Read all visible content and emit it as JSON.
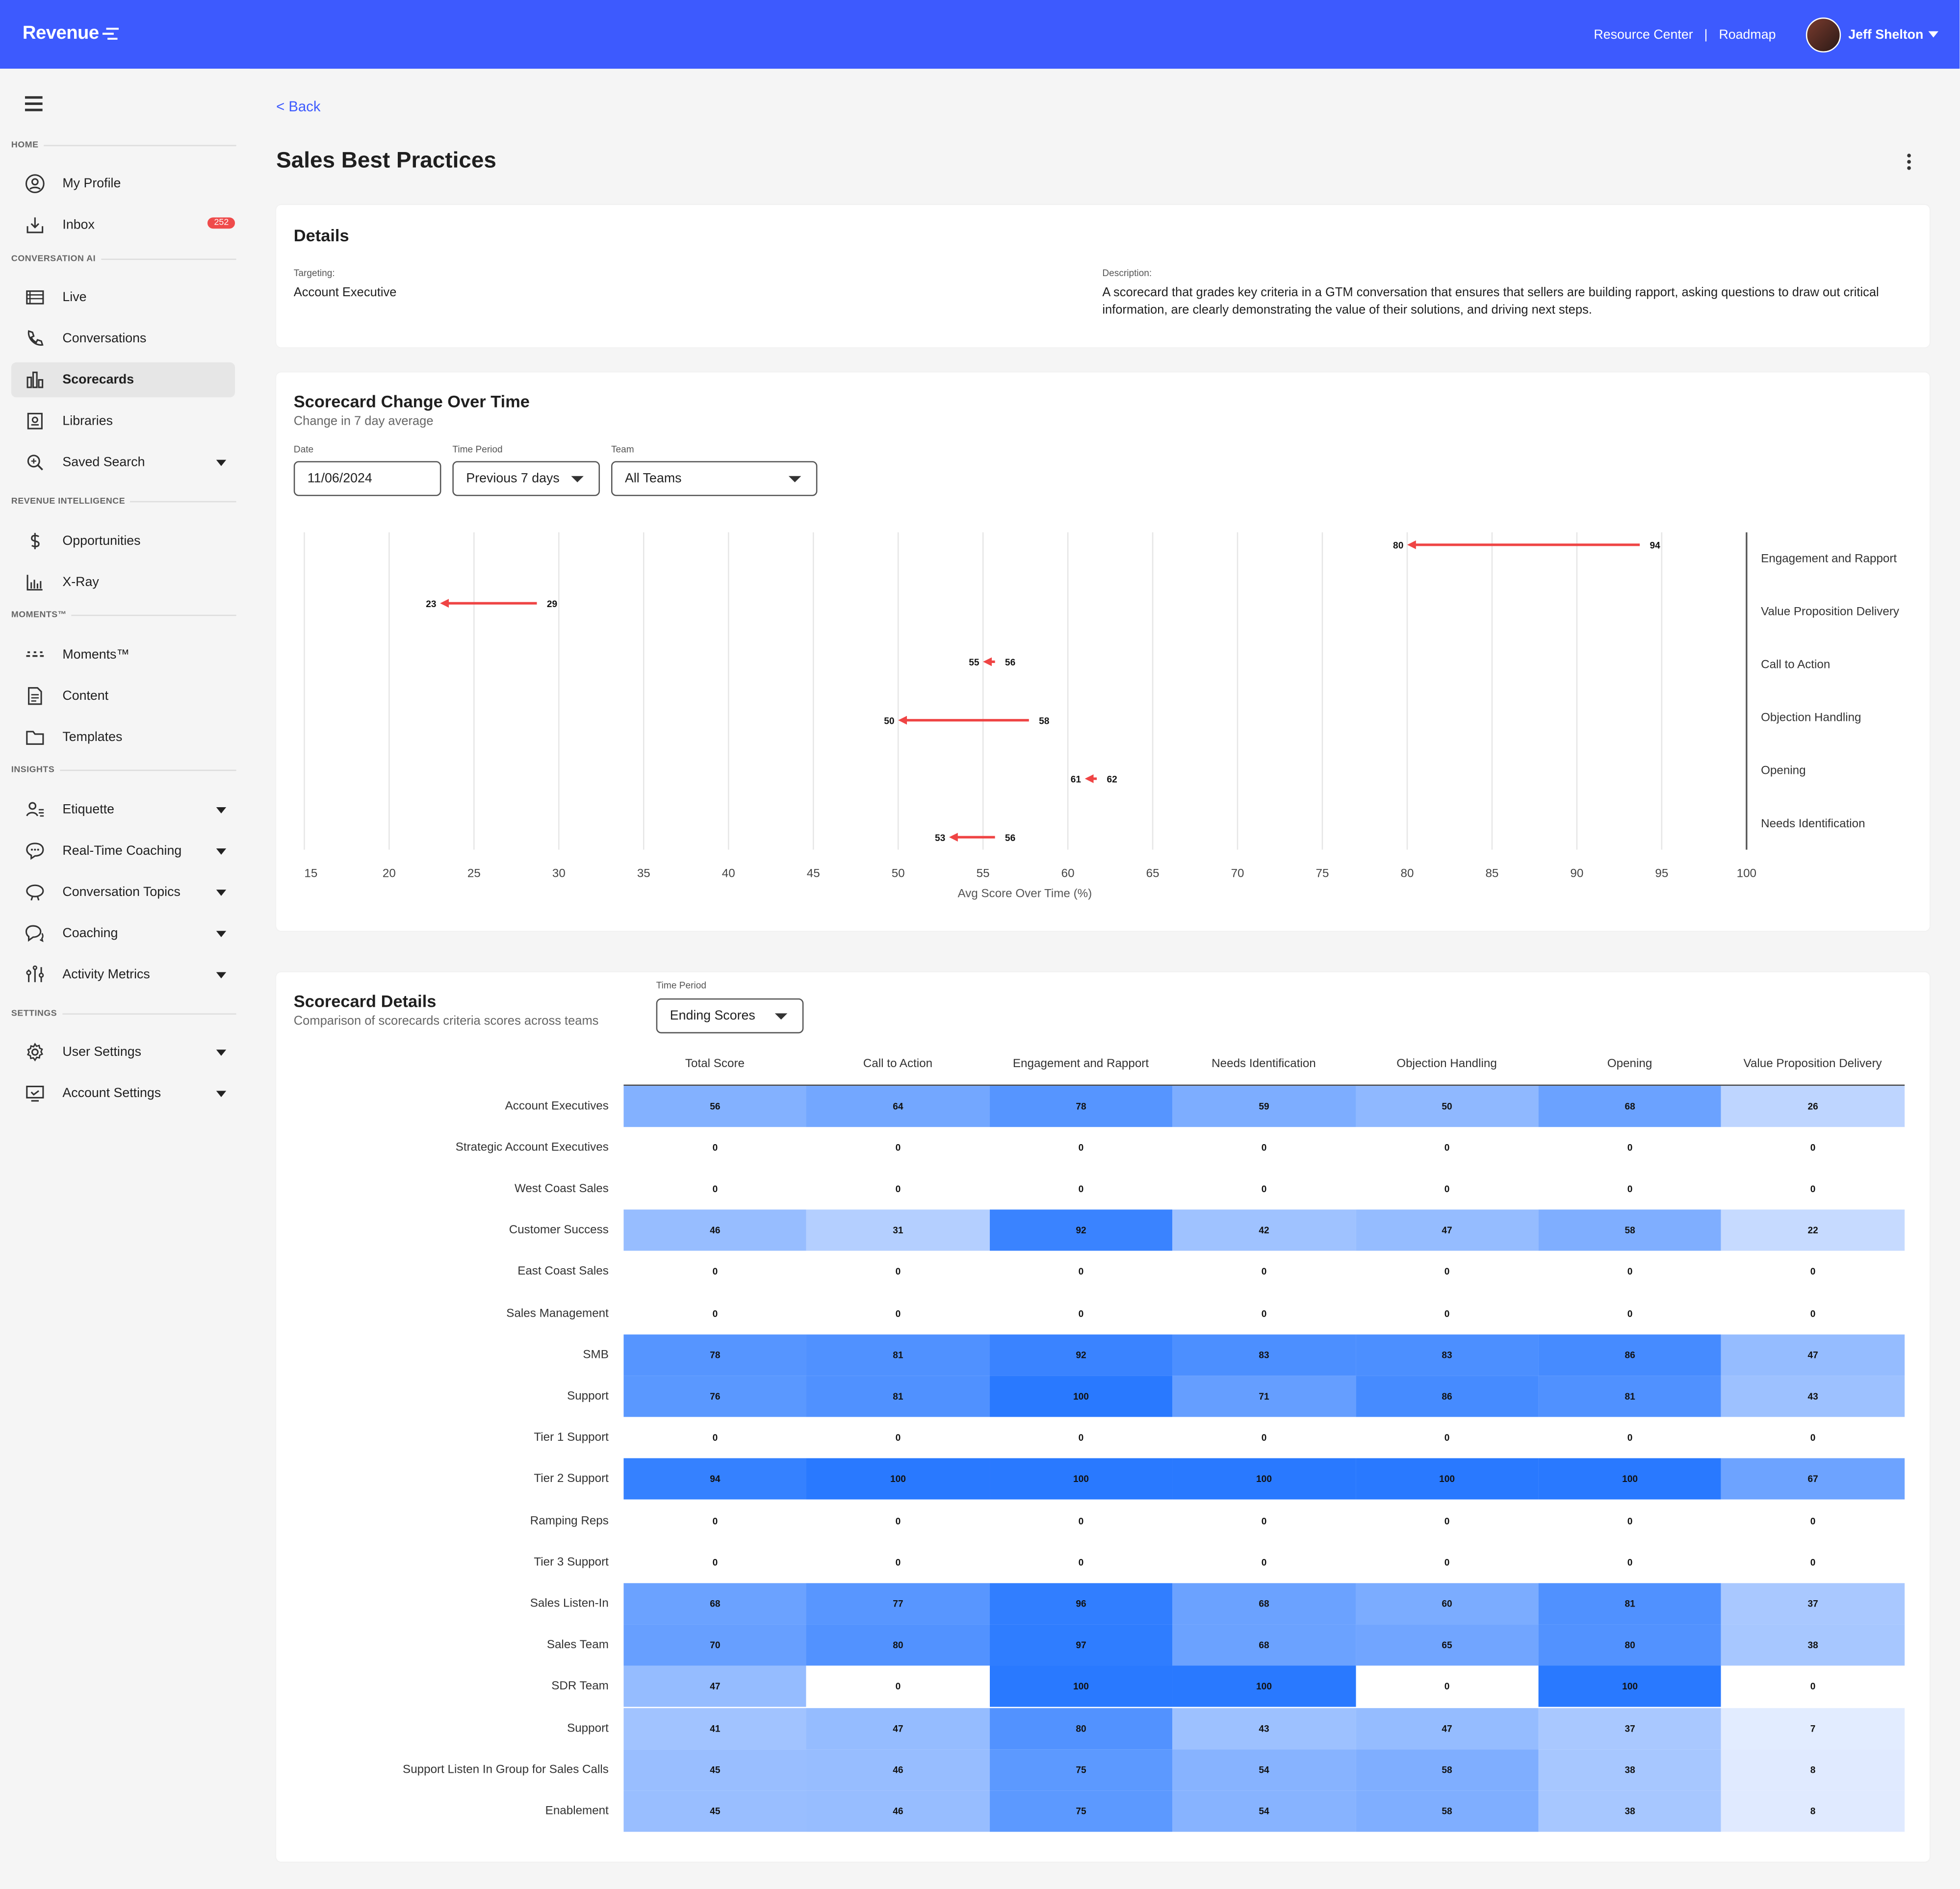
{
  "app": {
    "logo": "Revenue",
    "top_links": [
      "Resource Center",
      "Roadmap"
    ],
    "user_name": "Jeff Shelton"
  },
  "sidebar": {
    "sections": [
      {
        "title": "HOME",
        "items": [
          {
            "label": "My Profile",
            "icon": "profile-icon"
          },
          {
            "label": "Inbox",
            "icon": "inbox-icon",
            "badge": "252"
          }
        ]
      },
      {
        "title": "CONVERSATION AI",
        "items": [
          {
            "label": "Live",
            "icon": "live-icon"
          },
          {
            "label": "Conversations",
            "icon": "phone-icon"
          },
          {
            "label": "Scorecards",
            "icon": "scorecards-icon",
            "active": true
          },
          {
            "label": "Libraries",
            "icon": "library-icon"
          },
          {
            "label": "Saved Search",
            "icon": "search-icon",
            "dropdown": true
          }
        ]
      },
      {
        "title": "REVENUE INTELLIGENCE",
        "items": [
          {
            "label": "Opportunities",
            "icon": "dollar-icon"
          },
          {
            "label": "X-Ray",
            "icon": "xray-chart-icon"
          }
        ]
      },
      {
        "title": "MOMENTS™",
        "items": [
          {
            "label": "Moments™",
            "icon": "moments-icon"
          },
          {
            "label": "Content",
            "icon": "document-icon"
          },
          {
            "label": "Templates",
            "icon": "folder-icon"
          }
        ]
      },
      {
        "title": "INSIGHTS",
        "items": [
          {
            "label": "Etiquette",
            "icon": "etiquette-icon",
            "dropdown": true
          },
          {
            "label": "Real-Time Coaching",
            "icon": "chat-bubble-icon",
            "dropdown": true
          },
          {
            "label": "Conversation Topics",
            "icon": "topics-icon",
            "dropdown": true
          },
          {
            "label": "Coaching",
            "icon": "coaching-icon",
            "dropdown": true
          },
          {
            "label": "Activity Metrics",
            "icon": "sliders-icon",
            "dropdown": true
          }
        ]
      },
      {
        "title": "SETTINGS",
        "items": [
          {
            "label": "User Settings",
            "icon": "gear-icon",
            "dropdown": true
          },
          {
            "label": "Account Settings",
            "icon": "monitor-icon",
            "dropdown": true
          }
        ]
      }
    ]
  },
  "page": {
    "back_label": "< Back",
    "title": "Sales Best Practices"
  },
  "details": {
    "title": "Details",
    "targeting_label": "Targeting:",
    "targeting_value": "Account Executive",
    "description_label": "Description:",
    "description_value": "A scorecard that grades key criteria in a GTM conversation that ensures that sellers are building rapport, asking questions to draw out critical information, are clearly demonstrating the value of their solutions, and driving next steps."
  },
  "change_over_time": {
    "title": "Scorecard Change Over Time",
    "subtitle": "Change in 7 day average",
    "filters": {
      "date_label": "Date",
      "date_value": "11/06/2024",
      "period_label": "Time Period",
      "period_value": "Previous 7 days",
      "team_label": "Team",
      "team_value": "All Teams"
    }
  },
  "chart_data": [
    {
      "type": "dumbbell",
      "xlabel": "Avg Score Over Time (%)",
      "xlim": [
        15,
        100
      ],
      "xticks": [
        15,
        20,
        25,
        30,
        35,
        40,
        45,
        50,
        55,
        60,
        65,
        70,
        75,
        80,
        85,
        90,
        95,
        100
      ],
      "grid": true,
      "arrow_color": "#ef4444",
      "categories": [
        "Engagement and Rapport",
        "Value Proposition Delivery",
        "Call to Action",
        "Objection Handling",
        "Opening",
        "Needs Identification"
      ],
      "start": [
        94,
        29,
        56,
        58,
        62,
        56
      ],
      "end": [
        80,
        23,
        55,
        50,
        61,
        53
      ]
    },
    {
      "type": "heatmap",
      "title": "Scorecard Details",
      "subtitle": "Comparison of scorecards criteria scores across teams",
      "time_period_label": "Time Period",
      "time_period_value": "Ending Scores",
      "columns": [
        "Total Score",
        "Call to Action",
        "Engagement and Rapport",
        "Needs Identification",
        "Objection Handling",
        "Opening",
        "Value Proposition Delivery"
      ],
      "rows": [
        {
          "team": "Account Executives",
          "values": [
            56,
            64,
            78,
            59,
            50,
            68,
            26
          ]
        },
        {
          "team": "Strategic Account Executives",
          "values": [
            0,
            0,
            0,
            0,
            0,
            0,
            0
          ]
        },
        {
          "team": "West Coast Sales",
          "values": [
            0,
            0,
            0,
            0,
            0,
            0,
            0
          ]
        },
        {
          "team": "Customer Success",
          "values": [
            46,
            31,
            92,
            42,
            47,
            58,
            22
          ]
        },
        {
          "team": "East Coast Sales",
          "values": [
            0,
            0,
            0,
            0,
            0,
            0,
            0
          ]
        },
        {
          "team": "Sales Management",
          "values": [
            0,
            0,
            0,
            0,
            0,
            0,
            0
          ]
        },
        {
          "team": "SMB",
          "values": [
            78,
            81,
            92,
            83,
            83,
            86,
            47
          ]
        },
        {
          "team": "Support",
          "values": [
            76,
            81,
            100,
            71,
            86,
            81,
            43
          ]
        },
        {
          "team": "Tier 1 Support",
          "values": [
            0,
            0,
            0,
            0,
            0,
            0,
            0
          ]
        },
        {
          "team": "Tier 2 Support",
          "values": [
            94,
            100,
            100,
            100,
            100,
            100,
            67
          ]
        },
        {
          "team": "Ramping Reps",
          "values": [
            0,
            0,
            0,
            0,
            0,
            0,
            0
          ]
        },
        {
          "team": "Tier 3 Support",
          "values": [
            0,
            0,
            0,
            0,
            0,
            0,
            0
          ]
        },
        {
          "team": "Sales Listen-In",
          "values": [
            68,
            77,
            96,
            68,
            60,
            81,
            37
          ]
        },
        {
          "team": "Sales Team",
          "values": [
            70,
            80,
            97,
            68,
            65,
            80,
            38
          ]
        },
        {
          "team": "SDR Team",
          "values": [
            47,
            0,
            100,
            100,
            0,
            100,
            0
          ]
        },
        {
          "team": "Support",
          "values": [
            41,
            47,
            80,
            43,
            47,
            37,
            7
          ]
        },
        {
          "team": "Support Listen In Group for Sales Calls",
          "values": [
            45,
            46,
            75,
            54,
            58,
            38,
            8
          ]
        },
        {
          "team": "Enablement",
          "values": [
            45,
            46,
            75,
            54,
            58,
            38,
            8
          ]
        }
      ]
    }
  ]
}
